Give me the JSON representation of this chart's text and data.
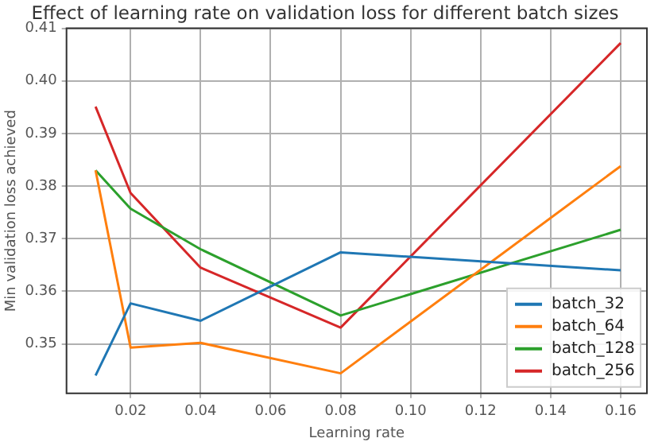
{
  "chart_data": {
    "type": "line",
    "title": "Effect of learning rate on validation loss for different batch sizes",
    "xlabel": "Learning rate",
    "ylabel": "Min validation loss achieved",
    "x": [
      0.01,
      0.02,
      0.04,
      0.08,
      0.16
    ],
    "series": [
      {
        "name": "batch_32",
        "color": "#1f77b4",
        "values": [
          0.344,
          0.3577,
          0.3544,
          0.3674,
          0.364
        ]
      },
      {
        "name": "batch_64",
        "color": "#ff7f0e",
        "values": [
          0.383,
          0.3493,
          0.3502,
          0.3444,
          0.3838
        ]
      },
      {
        "name": "batch_128",
        "color": "#2ca02c",
        "values": [
          0.383,
          0.3757,
          0.368,
          0.3554,
          0.3717
        ]
      },
      {
        "name": "batch_256",
        "color": "#d62728",
        "values": [
          0.3951,
          0.3787,
          0.3645,
          0.3531,
          0.4072
        ]
      }
    ],
    "xlim": [
      0.0017,
      0.1675
    ],
    "xticks": [
      0.02,
      0.04,
      0.06,
      0.08,
      {
        "value": 0.1,
        "label": "0.10"
      },
      0.12,
      0.14,
      0.16
    ],
    "ylim": [
      0.3406,
      0.41
    ],
    "yticks": [
      0.35,
      0.36,
      0.37,
      0.38,
      0.39,
      {
        "value": 0.4,
        "label": "0.40"
      },
      0.41
    ],
    "grid": true,
    "legend": "bottom right",
    "marker": "none",
    "line_style": "solid"
  }
}
